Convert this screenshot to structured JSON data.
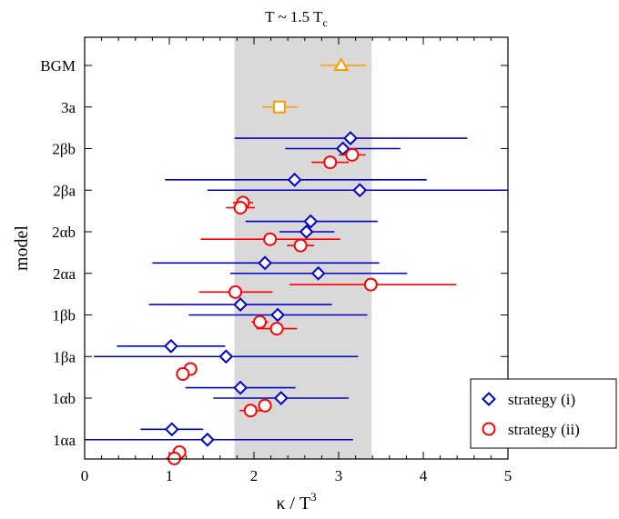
{
  "chart_data": {
    "type": "scatter",
    "title": "T ~ 1.5 T",
    "title_subscript": "c",
    "xlabel": "κ / T",
    "xlabel_superscript": "3",
    "ylabel": "model",
    "xlim": [
      0,
      5
    ],
    "x_ticks": [
      0,
      1,
      2,
      3,
      4,
      5
    ],
    "x_tick_labels": [
      "0",
      "1",
      "2",
      "3",
      "4",
      "5"
    ],
    "y_categories": [
      "BGM",
      "3a",
      "2βb",
      "2βa",
      "2αb",
      "2αa",
      "1βb",
      "1βa",
      "1αb",
      "1αa"
    ],
    "shaded_band": {
      "x_from": 1.77,
      "x_to": 3.39,
      "color": "#d9d9d9"
    },
    "legend": {
      "position": "bottom-right",
      "entries": [
        {
          "label": "strategy (i)",
          "marker": "diamond",
          "color": "#0000cc"
        },
        {
          "label": "strategy (ii)",
          "marker": "circle",
          "color": "#ff0000"
        }
      ]
    },
    "series": [
      {
        "name": "strategy (i)",
        "marker": "diamond",
        "color": "#0000cc",
        "points": [
          {
            "model": "2βb",
            "offset": -0.25,
            "x": 3.14,
            "xerr_low": 1.37,
            "xerr_high": 1.38
          },
          {
            "model": "2βb",
            "offset": 0.0,
            "x": 3.05,
            "xerr_low": 0.68,
            "xerr_high": 0.68
          },
          {
            "model": "2βa",
            "offset": -0.25,
            "x": 2.48,
            "xerr_low": 1.53,
            "xerr_high": 1.56
          },
          {
            "model": "2βa",
            "offset": 0.0,
            "x": 3.25,
            "xerr_low": 1.8,
            "xerr_high": 1.75
          },
          {
            "model": "2αb",
            "offset": -0.25,
            "x": 2.67,
            "xerr_low": 0.77,
            "xerr_high": 0.79
          },
          {
            "model": "2αb",
            "offset": 0.0,
            "x": 2.62,
            "xerr_low": 0.32,
            "xerr_high": 0.33
          },
          {
            "model": "2αa",
            "offset": -0.25,
            "x": 2.13,
            "xerr_low": 1.33,
            "xerr_high": 1.35
          },
          {
            "model": "2αa",
            "offset": 0.0,
            "x": 2.76,
            "xerr_low": 1.04,
            "xerr_high": 1.05
          },
          {
            "model": "1βb",
            "offset": -0.25,
            "x": 1.84,
            "xerr_low": 1.08,
            "xerr_high": 1.08
          },
          {
            "model": "1βb",
            "offset": 0.0,
            "x": 2.28,
            "xerr_low": 1.05,
            "xerr_high": 1.06
          },
          {
            "model": "1βa",
            "offset": -0.25,
            "x": 1.02,
            "xerr_low": 0.64,
            "xerr_high": 0.64
          },
          {
            "model": "1βa",
            "offset": 0.0,
            "x": 1.67,
            "xerr_low": 1.56,
            "xerr_high": 1.56
          },
          {
            "model": "1αb",
            "offset": -0.25,
            "x": 1.84,
            "xerr_low": 0.65,
            "xerr_high": 0.65
          },
          {
            "model": "1αb",
            "offset": 0.0,
            "x": 2.32,
            "xerr_low": 0.8,
            "xerr_high": 0.8
          },
          {
            "model": "1αa",
            "offset": -0.25,
            "x": 1.03,
            "xerr_low": 0.37,
            "xerr_high": 0.37
          },
          {
            "model": "1αa",
            "offset": 0.0,
            "x": 1.45,
            "xerr_low": 1.45,
            "xerr_high": 1.72
          }
        ]
      },
      {
        "name": "strategy (ii)",
        "marker": "circle",
        "color": "#ff0000",
        "points": [
          {
            "model": "2βb",
            "offset": 0.15,
            "x": 3.16,
            "xerr_low": 0.16,
            "xerr_high": 0.16
          },
          {
            "model": "2βb",
            "offset": 0.33,
            "x": 2.9,
            "xerr_low": 0.22,
            "xerr_high": 0.22
          },
          {
            "model": "2βa",
            "offset": 0.3,
            "x": 1.87,
            "xerr_low": 0.12,
            "xerr_high": 0.12
          },
          {
            "model": "2βa",
            "offset": 0.42,
            "x": 1.84,
            "xerr_low": 0.17,
            "xerr_high": 0.17
          },
          {
            "model": "2αb",
            "offset": 0.18,
            "x": 2.19,
            "xerr_low": 0.82,
            "xerr_high": 0.83
          },
          {
            "model": "2αb",
            "offset": 0.33,
            "x": 2.55,
            "xerr_low": 0.16,
            "xerr_high": 0.16
          },
          {
            "model": "2αa",
            "offset": 0.27,
            "x": 3.38,
            "xerr_low": 0.96,
            "xerr_high": 1.01
          },
          {
            "model": "2αa",
            "offset": 0.45,
            "x": 1.78,
            "xerr_low": 0.43,
            "xerr_high": 0.44
          },
          {
            "model": "1βb",
            "offset": 0.17,
            "x": 2.07,
            "xerr_low": 0.1,
            "xerr_high": 0.1
          },
          {
            "model": "1βb",
            "offset": 0.33,
            "x": 2.27,
            "xerr_low": 0.24,
            "xerr_high": 0.24
          },
          {
            "model": "1βa",
            "offset": 0.3,
            "x": 1.25,
            "xerr_low": 0.07,
            "xerr_high": 0.07
          },
          {
            "model": "1βa",
            "offset": 0.42,
            "x": 1.16,
            "xerr_low": 0.07,
            "xerr_high": 0.07
          },
          {
            "model": "1αb",
            "offset": 0.18,
            "x": 2.13,
            "xerr_low": 0.05,
            "xerr_high": 0.05
          },
          {
            "model": "1αb",
            "offset": 0.3,
            "x": 1.96,
            "xerr_low": 0.13,
            "xerr_high": 0.13
          },
          {
            "model": "1αa",
            "offset": 0.3,
            "x": 1.12,
            "xerr_low": 0.05,
            "xerr_high": 0.05
          },
          {
            "model": "1αa",
            "offset": 0.45,
            "x": 1.06,
            "xerr_low": 0.1,
            "xerr_high": 0.1
          }
        ]
      },
      {
        "name": "",
        "marker": "triangle",
        "color": "#ff9900",
        "points": [
          {
            "model": "BGM",
            "offset": 0.0,
            "x": 3.03,
            "xerr_low": 0.24,
            "xerr_high": 0.29
          }
        ]
      },
      {
        "name": "",
        "marker": "square",
        "color": "#ff9900",
        "points": [
          {
            "model": "3a",
            "offset": 0.0,
            "x": 2.3,
            "xerr_low": 0.2,
            "xerr_high": 0.22
          }
        ]
      }
    ]
  }
}
